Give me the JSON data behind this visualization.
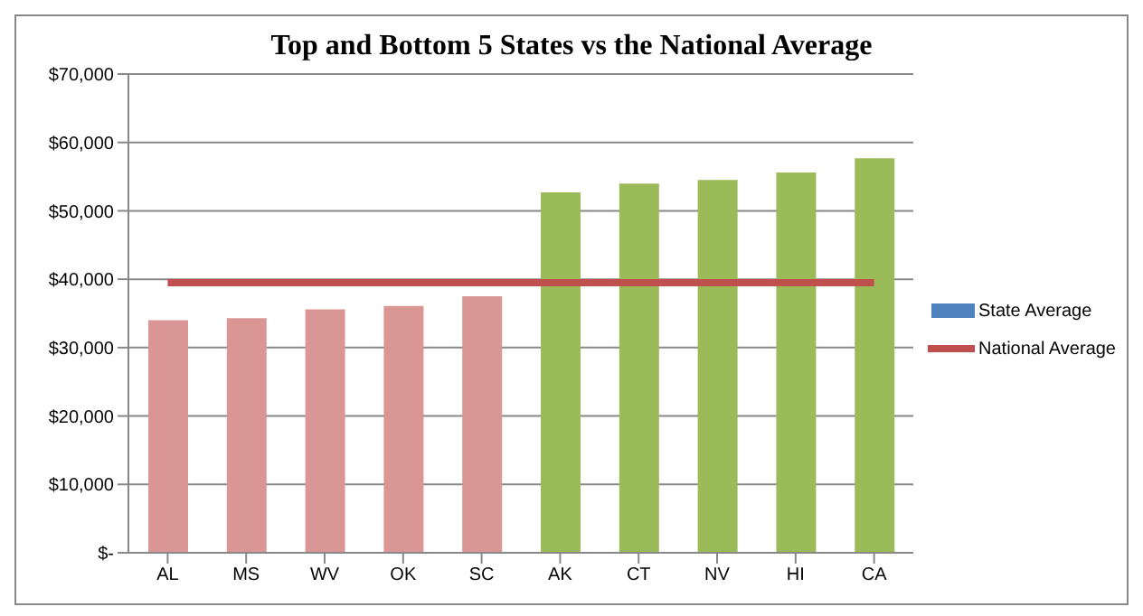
{
  "chart_data": {
    "type": "bar",
    "title": "Top and Bottom 5 States vs the National Average",
    "categories": [
      "AL",
      "MS",
      "WV",
      "OK",
      "SC",
      "AK",
      "CT",
      "NV",
      "HI",
      "CA"
    ],
    "series": [
      {
        "name": "State Average",
        "color": "#4f81bd",
        "colors": [
          "#d99694",
          "#d99694",
          "#d99694",
          "#d99694",
          "#d99694",
          "#9bbb59",
          "#9bbb59",
          "#9bbb59",
          "#9bbb59",
          "#9bbb59"
        ],
        "values": [
          34000,
          34300,
          35600,
          36100,
          37500,
          52700,
          54000,
          54500,
          55600,
          57700
        ]
      },
      {
        "name": "National Average",
        "type": "line",
        "color": "#c0504d",
        "values": [
          39500,
          39500,
          39500,
          39500,
          39500,
          39500,
          39500,
          39500,
          39500,
          39500
        ]
      }
    ],
    "ylim": [
      0,
      70000
    ],
    "yticks": [
      {
        "value": 0,
        "label": "$-"
      },
      {
        "value": 10000,
        "label": "$10,000"
      },
      {
        "value": 20000,
        "label": "$20,000"
      },
      {
        "value": 30000,
        "label": "$30,000"
      },
      {
        "value": 40000,
        "label": "$40,000"
      },
      {
        "value": 50000,
        "label": "$50,000"
      },
      {
        "value": 60000,
        "label": "$60,000"
      },
      {
        "value": 70000,
        "label": "$70,000"
      }
    ],
    "grid": "y",
    "legend": "right",
    "marker": "none"
  }
}
